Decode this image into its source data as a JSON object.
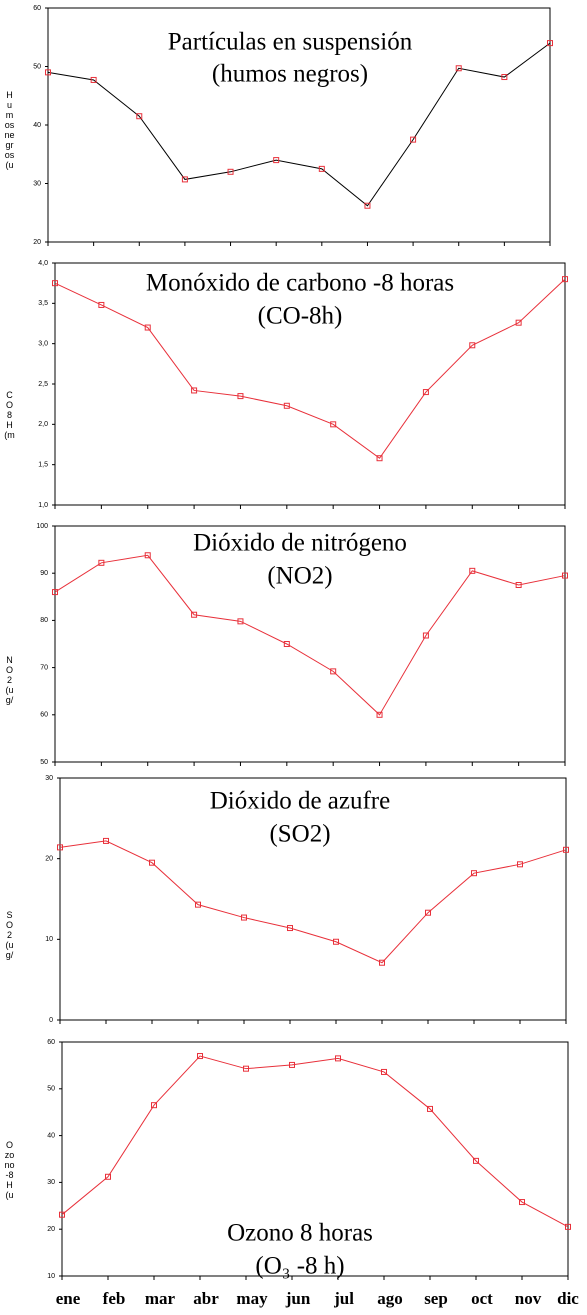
{
  "chart_data": [
    {
      "type": "line",
      "title": "Partículas en suspensión",
      "subtitle": "(humos negros)",
      "y_label": "Humos negros (u",
      "values": [
        49,
        47.7,
        41.5,
        30.7,
        32,
        34,
        32.5,
        26.2,
        37.5,
        49.7,
        48.2,
        54
      ],
      "color": "#000000",
      "marker_color": "#e8303a",
      "ylim": [
        20,
        60
      ],
      "yticks": [
        20,
        30,
        40,
        50,
        60
      ]
    },
    {
      "type": "line",
      "title": "Monóxido de carbono -8 horas",
      "subtitle": "(CO-8h)",
      "y_label": "CO8H(m",
      "values": [
        3.75,
        3.48,
        3.2,
        2.42,
        2.35,
        2.23,
        2.0,
        1.58,
        2.4,
        2.98,
        3.26,
        3.8
      ],
      "color": "#e8303a",
      "marker_color": "#e8303a",
      "ylim": [
        1,
        4
      ],
      "yticks": [
        {
          "value": 1,
          "label": "1,0"
        },
        {
          "value": 1.5,
          "label": "1,5"
        },
        {
          "value": 2,
          "label": "2,0"
        },
        {
          "value": 2.5,
          "label": "2,5"
        },
        {
          "value": 3,
          "label": "3,0"
        },
        {
          "value": 3.5,
          "label": "3,5"
        },
        {
          "value": 4,
          "label": "4,0"
        }
      ]
    },
    {
      "type": "line",
      "title": "Dióxido de nitrógeno",
      "subtitle": "(NO2)",
      "y_label": "NO2(ug/",
      "values": [
        86,
        92.2,
        93.8,
        81.2,
        79.8,
        75,
        69.2,
        60,
        76.8,
        90.5,
        87.5,
        89.5
      ],
      "color": "#e8303a",
      "marker_color": "#e8303a",
      "ylim": [
        50,
        100
      ],
      "yticks": [
        50,
        60,
        70,
        80,
        90,
        100
      ]
    },
    {
      "type": "line",
      "title": "Dióxido de azufre",
      "subtitle": "(SO2)",
      "y_label": "SO2(ug/",
      "values": [
        21.4,
        22.2,
        19.5,
        14.3,
        12.7,
        11.4,
        9.7,
        7.1,
        13.3,
        18.2,
        19.3,
        21.1
      ],
      "color": "#e8303a",
      "marker_color": "#e8303a",
      "ylim": [
        0,
        30
      ],
      "yticks": [
        0,
        10,
        20,
        30
      ]
    },
    {
      "type": "line",
      "title": "Ozono 8 horas",
      "subtitle": "(O₃ -8 h)",
      "y_label": "Ozono-8H(u",
      "categories": [
        "ene",
        "feb",
        "mar",
        "abr",
        "may",
        "jun",
        "jul",
        "ago",
        "sep",
        "oct",
        "nov",
        "dic"
      ],
      "values": [
        23.1,
        31.2,
        46.5,
        57,
        54.3,
        55.1,
        56.5,
        53.6,
        45.7,
        34.6,
        25.8,
        20.5
      ],
      "color": "#e8303a",
      "marker_color": "#e8303a",
      "ylim": [
        10,
        60
      ],
      "yticks": [
        10,
        20,
        30,
        40,
        50,
        60
      ]
    }
  ]
}
